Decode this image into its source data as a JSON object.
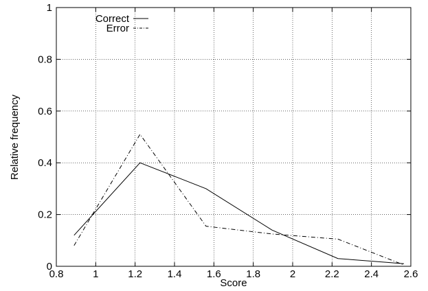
{
  "chart_data": {
    "type": "line",
    "xlabel": "Score",
    "ylabel": "Relative frequency",
    "xlim": [
      0.8,
      2.6
    ],
    "ylim": [
      0,
      1
    ],
    "xticks": [
      "0.8",
      "1",
      "1.2",
      "1.4",
      "1.6",
      "1.8",
      "2",
      "2.2",
      "2.4",
      "2.6"
    ],
    "yticks": [
      "0",
      "0.2",
      "0.4",
      "0.6",
      "0.8",
      "1"
    ],
    "grid": true,
    "legend_position": "top-left",
    "series": [
      {
        "name": "Correct",
        "style": "solid",
        "x": [
          0.89,
          1.225,
          1.56,
          1.895,
          2.23,
          2.565
        ],
        "y": [
          0.12,
          0.4,
          0.3,
          0.14,
          0.03,
          0.01
        ]
      },
      {
        "name": "Error",
        "style": "dash-dot",
        "x": [
          0.89,
          1.225,
          1.56,
          1.895,
          2.23,
          2.565
        ],
        "y": [
          0.08,
          0.51,
          0.155,
          0.125,
          0.105,
          0.005
        ]
      }
    ]
  }
}
